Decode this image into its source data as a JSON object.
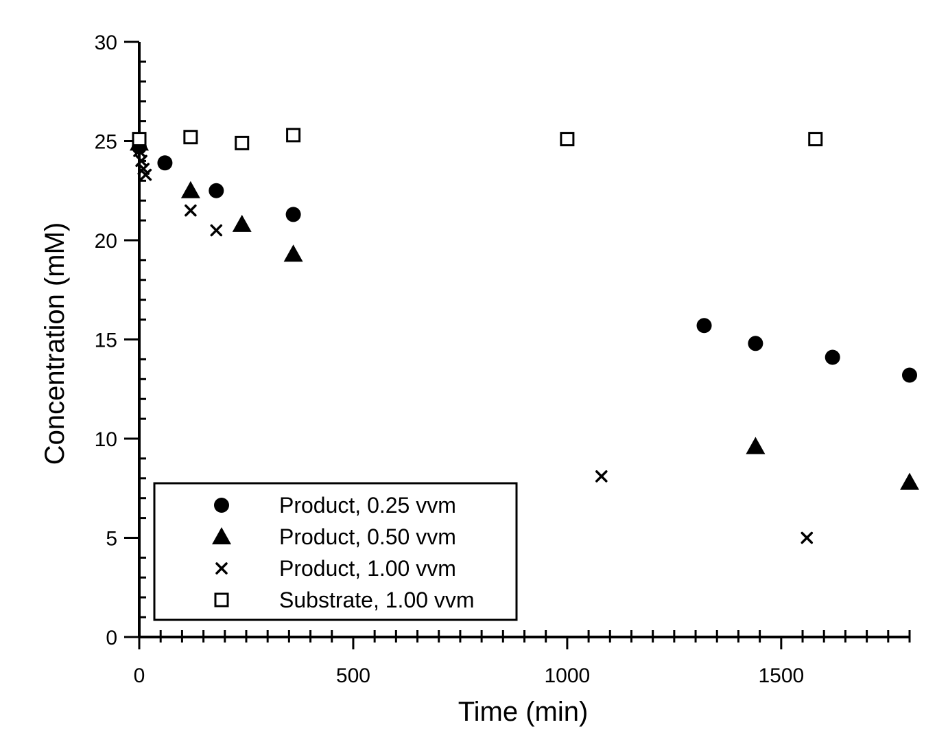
{
  "chart_data": {
    "type": "scatter",
    "title": "",
    "xlabel": "Time (min)",
    "ylabel": "Concentration (mM)",
    "xlim": [
      0,
      1800
    ],
    "ylim": [
      0,
      30
    ],
    "x_ticks": [
      0,
      500,
      1000,
      1500
    ],
    "y_ticks": [
      0,
      5,
      10,
      15,
      20,
      25,
      30
    ],
    "x_tick_labels": [
      "0",
      "500",
      "1000",
      "1500"
    ],
    "y_tick_labels": [
      "0",
      "5",
      "10",
      "15",
      "20",
      "25",
      "30"
    ],
    "grid": false,
    "legend_position": "bottom-left",
    "series": [
      {
        "name": "Product, 0.25 vvm",
        "marker": "filled-circle",
        "points": [
          [
            0,
            24.7
          ],
          [
            60,
            23.9
          ],
          [
            180,
            22.5
          ],
          [
            360,
            21.3
          ],
          [
            1320,
            15.7
          ],
          [
            1440,
            14.8
          ],
          [
            1620,
            14.1
          ],
          [
            1800,
            13.2
          ]
        ]
      },
      {
        "name": "Product, 0.50 vvm",
        "marker": "filled-triangle",
        "points": [
          [
            0,
            24.9
          ],
          [
            120,
            22.5
          ],
          [
            240,
            20.8
          ],
          [
            360,
            19.3
          ],
          [
            1440,
            9.6
          ],
          [
            1800,
            7.8
          ]
        ]
      },
      {
        "name": "Product, 1.00 vvm",
        "marker": "cross",
        "points": [
          [
            0,
            24.5
          ],
          [
            5,
            24.0
          ],
          [
            10,
            23.6
          ],
          [
            15,
            23.3
          ],
          [
            120,
            21.5
          ],
          [
            180,
            20.5
          ],
          [
            1080,
            8.1
          ],
          [
            1560,
            5.0
          ]
        ]
      },
      {
        "name": "Substrate, 1.00 vvm",
        "marker": "open-square",
        "points": [
          [
            0,
            25.1
          ],
          [
            120,
            25.2
          ],
          [
            240,
            24.9
          ],
          [
            360,
            25.3
          ],
          [
            1000,
            25.1
          ],
          [
            1580,
            25.1
          ]
        ]
      }
    ]
  }
}
